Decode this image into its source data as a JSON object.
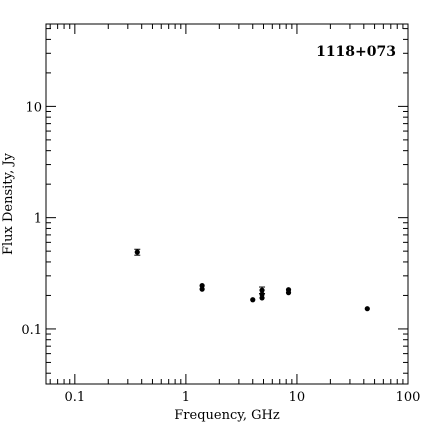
{
  "chart_data": {
    "type": "scatter",
    "title": "1118+073",
    "xlabel": "Frequency, GHz",
    "ylabel": "Flux Density, Jy",
    "x_scale": "log",
    "y_scale": "log",
    "xlim": [
      0.055,
      100
    ],
    "ylim": [
      0.032,
      55
    ],
    "x_ticks": [
      {
        "value": 0.1,
        "label": "0.1"
      },
      {
        "value": 1,
        "label": "1"
      },
      {
        "value": 10,
        "label": "10"
      },
      {
        "value": 100,
        "label": "100"
      }
    ],
    "y_ticks": [
      {
        "value": 0.1,
        "label": "0.1"
      },
      {
        "value": 1,
        "label": "1"
      },
      {
        "value": 10,
        "label": "10"
      }
    ],
    "grid": false,
    "points": [
      {
        "x": 0.365,
        "y": 0.49,
        "err": 0.03
      },
      {
        "x": 1.4,
        "y": 0.245
      },
      {
        "x": 1.4,
        "y": 0.228
      },
      {
        "x": 4.0,
        "y": 0.183
      },
      {
        "x": 4.85,
        "y": 0.223,
        "err": 0.015
      },
      {
        "x": 4.85,
        "y": 0.205
      },
      {
        "x": 4.85,
        "y": 0.19
      },
      {
        "x": 8.4,
        "y": 0.225
      },
      {
        "x": 8.4,
        "y": 0.212
      },
      {
        "x": 43,
        "y": 0.152
      }
    ]
  }
}
